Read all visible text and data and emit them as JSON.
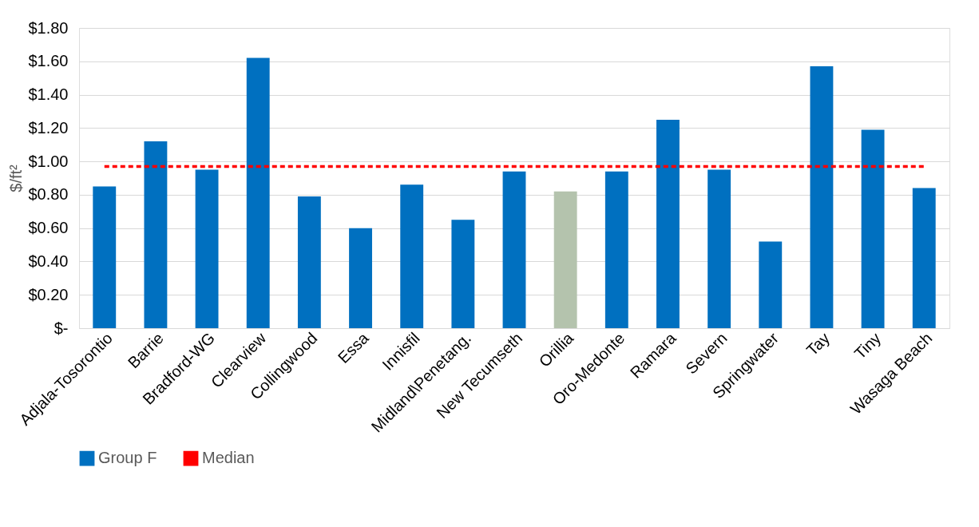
{
  "chart_data": {
    "type": "bar",
    "ylabel": "$/ft²",
    "categories": [
      "Adjala-Tosorontio",
      "Barrie",
      "Bradford-WG",
      "Clearview",
      "Collingwood",
      "Essa",
      "Innisfil",
      "Midland\\Penetang.",
      "New Tecumseth",
      "Orillia",
      "Oro-Medonte",
      "Ramara",
      "Severn",
      "Springwater",
      "Tay",
      "Tiny",
      "Wasaga Beach"
    ],
    "series": [
      {
        "name": "Group F",
        "color": "#0070c0",
        "colors": [
          "#0070c0",
          "#0070c0",
          "#0070c0",
          "#0070c0",
          "#0070c0",
          "#0070c0",
          "#0070c0",
          "#0070c0",
          "#0070c0",
          "#b4c3ad",
          "#0070c0",
          "#0070c0",
          "#0070c0",
          "#0070c0",
          "#0070c0",
          "#0070c0",
          "#0070c0"
        ],
        "values": [
          0.85,
          1.12,
          0.95,
          1.62,
          0.79,
          0.6,
          0.86,
          0.65,
          0.94,
          0.82,
          0.94,
          1.25,
          0.95,
          0.52,
          1.57,
          1.19,
          0.84
        ]
      },
      {
        "name": "Median",
        "type": "line",
        "color": "#ff0000",
        "line_style": "dashed",
        "values": [
          0.97,
          0.97,
          0.97,
          0.97,
          0.97,
          0.97,
          0.97,
          0.97,
          0.97,
          0.97,
          0.97,
          0.97,
          0.97,
          0.97,
          0.97,
          0.97,
          0.97
        ]
      }
    ],
    "ylim": [
      0,
      1.8
    ],
    "yticks": [
      {
        "value": 0,
        "label": "$-"
      },
      {
        "value": 0.2,
        "label": "$0.20"
      },
      {
        "value": 0.4,
        "label": "$0.40"
      },
      {
        "value": 0.6,
        "label": "$0.60"
      },
      {
        "value": 0.8,
        "label": "$0.80"
      },
      {
        "value": 1.0,
        "label": "$1.00"
      },
      {
        "value": 1.2,
        "label": "$1.20"
      },
      {
        "value": 1.4,
        "label": "$1.40"
      },
      {
        "value": 1.6,
        "label": "$1.60"
      },
      {
        "value": 1.8,
        "label": "$1.80"
      }
    ],
    "grid": "y",
    "legend": "bottom"
  }
}
